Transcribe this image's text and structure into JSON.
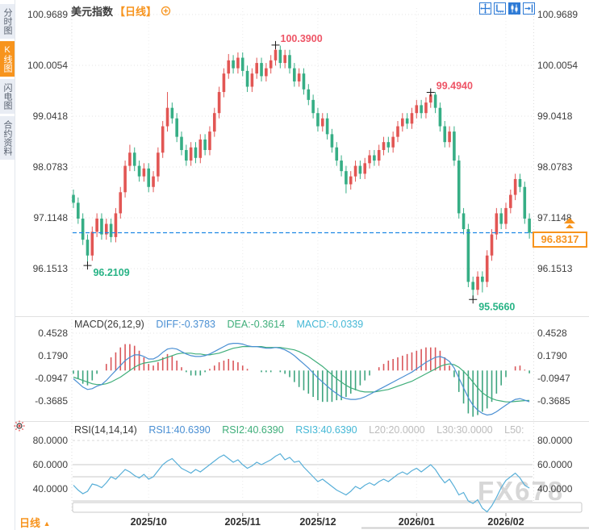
{
  "app": {
    "title_symbol": "美元指数",
    "title_period": "【日线】",
    "period_label": "日线",
    "period_arrow": "▲",
    "watermark": "FX678"
  },
  "sidebar": {
    "tabs": [
      {
        "label": "分时图",
        "active": false
      },
      {
        "label": "K线图",
        "active": true
      },
      {
        "label": "闪电图",
        "active": false
      },
      {
        "label": "合约资料",
        "active": false
      }
    ]
  },
  "toolbar": {
    "icons": [
      "pan-crosshair-icon",
      "axis-scale-icon",
      "candle-style-icon",
      "jump-to-latest-icon"
    ]
  },
  "colors": {
    "accent_orange": "#f7941d",
    "up_red": "#e25654",
    "down_green": "#36ae85",
    "diff_blue": "#4a8fd3",
    "dea_green": "#3fae7a",
    "macd_cyan": "#45b8d6",
    "rsi_blue": "#58afd8",
    "label_red": "#ee5566",
    "label_green": "#27b385",
    "dashed_blue": "#1e88e5",
    "grid": "#e0e0e0",
    "axis_text": "#3d3d3d",
    "muted": "#bcbcbc"
  },
  "chart_data": {
    "type": "candlestick+macd+rsi",
    "title": "美元指数 日线",
    "price_axis": {
      "labels": [
        "100.9689",
        "100.0054",
        "99.0418",
        "98.0783",
        "97.1148",
        "96.1513"
      ],
      "values": [
        100.9689,
        100.0054,
        99.0418,
        98.0783,
        97.1148,
        96.1513
      ]
    },
    "x_axis": {
      "labels": [
        "2025/10",
        "2025/11",
        "2025/12",
        "2026/01",
        "2026/02"
      ],
      "indices": [
        16,
        36,
        52,
        73,
        92
      ]
    },
    "annotations": {
      "high_label": "100.3900",
      "high_value": 100.39,
      "high_index": 43,
      "swing_high_label": "99.4940",
      "swing_high_value": 99.494,
      "swing_high_index": 76,
      "low_label": "96.2109",
      "low_value": 96.2109,
      "low_index": 3,
      "swing_low_label": "95.5660",
      "swing_low_value": 95.566,
      "swing_low_index": 85,
      "current": "96.8317",
      "current_value": 96.8317
    },
    "candles": [
      [
        97.55,
        97.65,
        97.3,
        97.4
      ],
      [
        97.4,
        97.5,
        97.0,
        97.1
      ],
      [
        97.1,
        97.2,
        96.6,
        96.7
      ],
      [
        96.7,
        96.8,
        96.2109,
        96.4
      ],
      [
        96.4,
        96.95,
        96.3,
        96.85
      ],
      [
        96.85,
        97.2,
        96.75,
        97.1
      ],
      [
        97.1,
        97.2,
        96.7,
        96.8
      ],
      [
        96.8,
        97.1,
        96.7,
        97.0
      ],
      [
        97.0,
        97.1,
        96.65,
        96.75
      ],
      [
        96.75,
        97.3,
        96.65,
        97.2
      ],
      [
        97.2,
        97.7,
        97.1,
        97.6
      ],
      [
        97.6,
        98.2,
        97.5,
        98.1
      ],
      [
        98.1,
        98.5,
        98.0,
        98.35
      ],
      [
        98.35,
        98.45,
        98.0,
        98.1
      ],
      [
        98.1,
        98.2,
        97.8,
        97.9
      ],
      [
        97.9,
        98.15,
        97.8,
        98.05
      ],
      [
        98.05,
        98.15,
        97.6,
        97.7
      ],
      [
        97.7,
        98.0,
        97.6,
        97.9
      ],
      [
        97.9,
        98.45,
        97.8,
        98.35
      ],
      [
        98.35,
        98.95,
        98.25,
        98.85
      ],
      [
        98.85,
        99.5,
        98.75,
        99.2
      ],
      [
        99.2,
        99.3,
        98.9,
        99.0
      ],
      [
        99.0,
        99.1,
        98.55,
        98.65
      ],
      [
        98.65,
        98.75,
        98.3,
        98.4
      ],
      [
        98.4,
        98.5,
        98.1,
        98.2
      ],
      [
        98.2,
        98.55,
        98.1,
        98.45
      ],
      [
        98.45,
        98.55,
        98.15,
        98.25
      ],
      [
        98.25,
        98.7,
        98.15,
        98.6
      ],
      [
        98.6,
        98.7,
        98.3,
        98.4
      ],
      [
        98.4,
        98.85,
        98.3,
        98.75
      ],
      [
        98.75,
        99.2,
        98.65,
        99.1
      ],
      [
        99.1,
        99.6,
        99.0,
        99.5
      ],
      [
        99.5,
        99.95,
        99.4,
        99.85
      ],
      [
        99.85,
        100.22,
        99.75,
        100.1
      ],
      [
        100.1,
        100.2,
        99.85,
        99.95
      ],
      [
        99.95,
        100.25,
        99.85,
        100.15
      ],
      [
        100.15,
        100.25,
        99.8,
        99.9
      ],
      [
        99.9,
        100.0,
        99.5,
        99.6
      ],
      [
        99.6,
        99.95,
        99.5,
        99.85
      ],
      [
        99.85,
        100.15,
        99.75,
        100.05
      ],
      [
        100.05,
        100.15,
        99.7,
        99.8
      ],
      [
        99.8,
        100.05,
        99.7,
        99.95
      ],
      [
        99.95,
        100.2,
        99.85,
        100.1
      ],
      [
        100.1,
        100.39,
        100.0,
        100.3
      ],
      [
        100.3,
        100.38,
        99.95,
        100.05
      ],
      [
        100.05,
        100.3,
        99.95,
        100.2
      ],
      [
        100.2,
        100.3,
        99.85,
        99.95
      ],
      [
        99.95,
        100.05,
        99.6,
        99.7
      ],
      [
        99.7,
        99.95,
        99.6,
        99.85
      ],
      [
        99.85,
        99.95,
        99.45,
        99.55
      ],
      [
        99.55,
        99.65,
        99.25,
        99.35
      ],
      [
        99.35,
        99.45,
        99.0,
        99.1
      ],
      [
        99.1,
        99.2,
        98.75,
        98.85
      ],
      [
        98.85,
        99.1,
        98.75,
        99.0
      ],
      [
        99.0,
        99.1,
        98.6,
        98.7
      ],
      [
        98.7,
        98.8,
        98.35,
        98.45
      ],
      [
        98.45,
        98.55,
        98.1,
        98.2
      ],
      [
        98.2,
        98.3,
        97.9,
        98.0
      ],
      [
        98.0,
        98.1,
        97.58,
        97.75
      ],
      [
        97.75,
        98.0,
        97.65,
        97.9
      ],
      [
        97.9,
        98.2,
        97.8,
        98.1
      ],
      [
        98.1,
        98.2,
        97.85,
        97.95
      ],
      [
        97.95,
        98.25,
        97.85,
        98.15
      ],
      [
        98.15,
        98.4,
        98.05,
        98.3
      ],
      [
        98.3,
        98.4,
        98.1,
        98.2
      ],
      [
        98.2,
        98.5,
        98.1,
        98.4
      ],
      [
        98.4,
        98.65,
        98.3,
        98.55
      ],
      [
        98.55,
        98.65,
        98.35,
        98.45
      ],
      [
        98.45,
        98.75,
        98.35,
        98.65
      ],
      [
        98.65,
        98.95,
        98.55,
        98.85
      ],
      [
        98.85,
        99.1,
        98.75,
        99.0
      ],
      [
        99.0,
        99.1,
        98.8,
        98.9
      ],
      [
        98.9,
        99.2,
        98.8,
        99.1
      ],
      [
        99.1,
        99.35,
        99.0,
        99.25
      ],
      [
        99.25,
        99.35,
        99.0,
        99.1
      ],
      [
        99.1,
        99.4,
        99.0,
        99.3
      ],
      [
        99.3,
        99.494,
        99.2,
        99.45
      ],
      [
        99.45,
        99.5,
        99.1,
        99.2
      ],
      [
        99.2,
        99.3,
        98.75,
        98.85
      ],
      [
        98.85,
        98.95,
        98.45,
        98.55
      ],
      [
        98.55,
        98.85,
        98.45,
        98.75
      ],
      [
        98.75,
        98.85,
        98.1,
        98.2
      ],
      [
        98.2,
        98.3,
        97.1,
        97.2
      ],
      [
        97.2,
        97.3,
        96.8,
        96.9
      ],
      [
        96.9,
        97.0,
        95.8,
        95.9
      ],
      [
        95.9,
        96.0,
        95.566,
        95.75
      ],
      [
        95.75,
        96.1,
        95.65,
        96.0
      ],
      [
        96.0,
        96.1,
        95.7,
        95.9
      ],
      [
        95.9,
        96.5,
        95.8,
        96.4
      ],
      [
        96.4,
        96.9,
        96.3,
        96.8
      ],
      [
        96.8,
        97.3,
        96.7,
        97.2
      ],
      [
        97.2,
        97.3,
        96.9,
        97.0
      ],
      [
        97.0,
        97.4,
        96.9,
        97.3
      ],
      [
        97.3,
        97.65,
        97.2,
        97.55
      ],
      [
        97.55,
        97.95,
        97.45,
        97.85
      ],
      [
        97.85,
        97.95,
        97.6,
        97.7
      ],
      [
        97.7,
        97.8,
        97.0,
        97.1
      ],
      [
        97.1,
        97.2,
        96.72,
        96.8317
      ]
    ],
    "macd": {
      "title": "MACD(26,12,9)",
      "diff_label": "DIFF:-0.3783",
      "dea_label": "DEA:-0.3614",
      "macd_label": "MACD:-0.0339",
      "axis_labels": [
        "0.4528",
        "0.1790",
        "-0.0947",
        "-0.3685"
      ],
      "axis_values": [
        0.4528,
        0.179,
        -0.0947,
        -0.3685
      ],
      "diff": [
        -0.1,
        -0.15,
        -0.2,
        -0.23,
        -0.22,
        -0.19,
        -0.17,
        -0.12,
        -0.06,
        0.0,
        0.06,
        0.12,
        0.16,
        0.19,
        0.19,
        0.17,
        0.14,
        0.14,
        0.17,
        0.22,
        0.26,
        0.27,
        0.26,
        0.23,
        0.2,
        0.18,
        0.17,
        0.17,
        0.18,
        0.2,
        0.23,
        0.26,
        0.29,
        0.32,
        0.33,
        0.33,
        0.32,
        0.3,
        0.29,
        0.29,
        0.28,
        0.27,
        0.27,
        0.28,
        0.27,
        0.25,
        0.22,
        0.18,
        0.13,
        0.08,
        0.03,
        -0.03,
        -0.09,
        -0.14,
        -0.19,
        -0.24,
        -0.28,
        -0.32,
        -0.34,
        -0.35,
        -0.35,
        -0.34,
        -0.32,
        -0.29,
        -0.26,
        -0.23,
        -0.2,
        -0.17,
        -0.14,
        -0.11,
        -0.08,
        -0.05,
        -0.02,
        0.02,
        0.06,
        0.1,
        0.13,
        0.16,
        0.17,
        0.15,
        0.11,
        0.03,
        -0.09,
        -0.21,
        -0.33,
        -0.42,
        -0.48,
        -0.52,
        -0.54,
        -0.53,
        -0.5,
        -0.46,
        -0.42,
        -0.38,
        -0.35,
        -0.34,
        -0.36,
        -0.3783
      ],
      "dea": [
        -0.08,
        -0.1,
        -0.12,
        -0.14,
        -0.16,
        -0.17,
        -0.17,
        -0.16,
        -0.14,
        -0.11,
        -0.08,
        -0.04,
        0.0,
        0.04,
        0.07,
        0.09,
        0.1,
        0.11,
        0.12,
        0.14,
        0.16,
        0.18,
        0.2,
        0.21,
        0.21,
        0.21,
        0.2,
        0.2,
        0.19,
        0.19,
        0.2,
        0.21,
        0.23,
        0.25,
        0.27,
        0.28,
        0.29,
        0.29,
        0.29,
        0.29,
        0.29,
        0.28,
        0.28,
        0.28,
        0.28,
        0.27,
        0.26,
        0.25,
        0.23,
        0.2,
        0.17,
        0.13,
        0.09,
        0.05,
        0.0,
        -0.05,
        -0.1,
        -0.14,
        -0.18,
        -0.21,
        -0.23,
        -0.25,
        -0.26,
        -0.26,
        -0.26,
        -0.25,
        -0.24,
        -0.23,
        -0.21,
        -0.19,
        -0.17,
        -0.15,
        -0.13,
        -0.1,
        -0.07,
        -0.04,
        -0.01,
        0.02,
        0.05,
        0.07,
        0.08,
        0.07,
        0.04,
        -0.01,
        -0.07,
        -0.14,
        -0.21,
        -0.27,
        -0.31,
        -0.34,
        -0.36,
        -0.37,
        -0.38,
        -0.38,
        -0.375,
        -0.37,
        -0.365,
        -0.3614
      ]
    },
    "rsi": {
      "title": "RSI(14,14,14)",
      "rsi1_label": "RSI1:40.6390",
      "rsi2_label": "RSI2:40.6390",
      "rsi3_label": "RSI3:40.6390",
      "l20_label": "L20:20.0000",
      "l30_label": "L30:30.0000",
      "l50_label": "L50:",
      "axis_labels": [
        "80.0000",
        "60.0000",
        "40.0000"
      ],
      "axis_values": [
        80,
        60,
        40
      ],
      "level_lines": [
        60,
        50,
        30
      ],
      "values": [
        43,
        39,
        36,
        38,
        44,
        43,
        41,
        45,
        50,
        48,
        52,
        56,
        54,
        51,
        49,
        52,
        48,
        50,
        55,
        60,
        63,
        65,
        61,
        57,
        55,
        53,
        56,
        54,
        57,
        60,
        63,
        66,
        68,
        65,
        62,
        64,
        60,
        57,
        59,
        62,
        60,
        62,
        64,
        67,
        69,
        64,
        66,
        62,
        63,
        58,
        54,
        50,
        46,
        48,
        45,
        42,
        39,
        37,
        35,
        38,
        42,
        40,
        43,
        45,
        43,
        46,
        48,
        46,
        49,
        52,
        54,
        52,
        55,
        57,
        54,
        57,
        60,
        56,
        50,
        45,
        48,
        42,
        35,
        37,
        30,
        28,
        31,
        24,
        20,
        26,
        33,
        41,
        47,
        50,
        53,
        49,
        43,
        40.639
      ]
    }
  }
}
